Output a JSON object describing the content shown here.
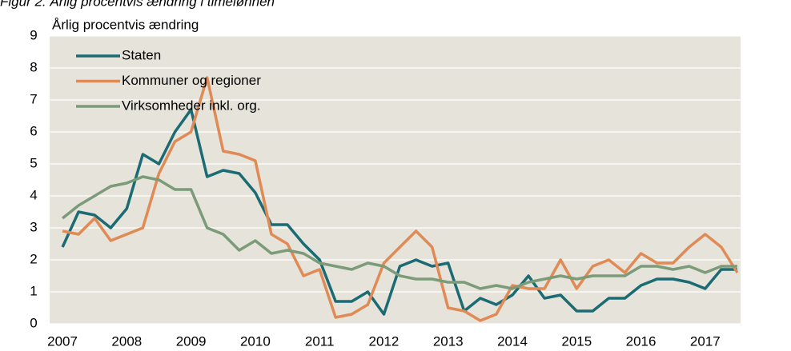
{
  "chart_data": {
    "type": "line",
    "title": "Figur 2. Årlig procentvis ændring i timelønnen",
    "ylabel": "Årlig procentvis ændring",
    "x": [
      2007,
      2007.25,
      2007.5,
      2007.75,
      2008,
      2008.25,
      2008.5,
      2008.75,
      2009,
      2009.25,
      2009.5,
      2009.75,
      2010,
      2010.25,
      2010.5,
      2010.75,
      2011,
      2011.25,
      2011.5,
      2011.75,
      2012,
      2012.25,
      2012.5,
      2012.75,
      2013,
      2013.25,
      2013.5,
      2013.75,
      2014,
      2014.25,
      2014.5,
      2014.75,
      2015,
      2015.25,
      2015.5,
      2015.75,
      2016,
      2016.25,
      2016.5,
      2016.75,
      2017,
      2017.25,
      2017.5
    ],
    "series": [
      {
        "name": "Staten",
        "color": "#1b6b74",
        "values": [
          2.4,
          3.5,
          3.4,
          3.0,
          3.6,
          5.3,
          5.0,
          6.0,
          6.7,
          4.6,
          4.8,
          4.7,
          4.1,
          3.1,
          3.1,
          2.5,
          2.0,
          0.7,
          0.7,
          1.0,
          0.3,
          1.8,
          2.0,
          1.8,
          1.9,
          0.4,
          0.8,
          0.6,
          0.9,
          1.5,
          0.8,
          0.9,
          0.4,
          0.4,
          0.8,
          0.8,
          1.2,
          1.4,
          1.4,
          1.3,
          1.1,
          1.7,
          1.7
        ]
      },
      {
        "name": "Kommuner og regioner",
        "color": "#e08a55",
        "values": [
          2.9,
          2.8,
          3.3,
          2.6,
          2.8,
          3.0,
          4.7,
          5.7,
          6.0,
          7.7,
          5.4,
          5.3,
          5.1,
          2.8,
          2.5,
          1.5,
          1.7,
          0.2,
          0.3,
          0.6,
          1.9,
          2.4,
          2.9,
          2.4,
          0.5,
          0.4,
          0.1,
          0.3,
          1.2,
          1.1,
          1.1,
          2.0,
          1.1,
          1.8,
          2.0,
          1.6,
          2.2,
          1.9,
          1.9,
          2.4,
          2.8,
          2.4,
          1.6
        ]
      },
      {
        "name": "Virksomheder inkl. org.",
        "color": "#7c9b79",
        "values": [
          3.3,
          3.7,
          4.0,
          4.3,
          4.4,
          4.6,
          4.5,
          4.2,
          4.2,
          3.0,
          2.8,
          2.3,
          2.6,
          2.2,
          2.3,
          2.2,
          1.9,
          1.8,
          1.7,
          1.9,
          1.8,
          1.5,
          1.4,
          1.4,
          1.3,
          1.3,
          1.1,
          1.2,
          1.1,
          1.3,
          1.4,
          1.5,
          1.4,
          1.5,
          1.5,
          1.5,
          1.8,
          1.8,
          1.7,
          1.8,
          1.6,
          1.8,
          1.8
        ]
      }
    ],
    "xlim": [
      2006.8,
      2017.55
    ],
    "xticks": [
      2007,
      2008,
      2009,
      2010,
      2011,
      2012,
      2013,
      2014,
      2015,
      2016,
      2017
    ],
    "ylim": [
      0,
      9
    ],
    "yticks": [
      0,
      1,
      2,
      3,
      4,
      5,
      6,
      7,
      8,
      9
    ],
    "grid": true,
    "legend": "upper left",
    "plot_background": "#e6e3da"
  }
}
